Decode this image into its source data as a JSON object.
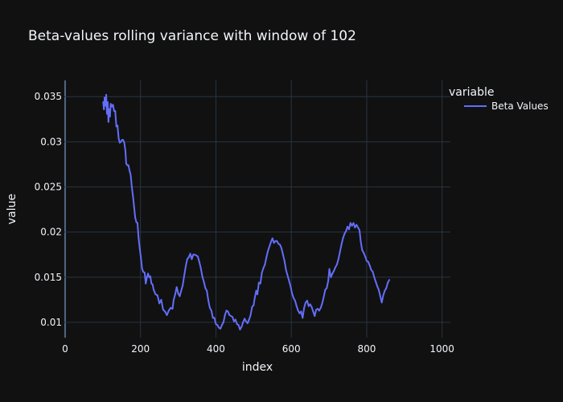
{
  "chart_data": {
    "type": "line",
    "title": "Beta-values rolling variance with window of 102",
    "xlabel": "index",
    "ylabel": "value",
    "xlim": [
      -2,
      1022
    ],
    "ylim": [
      0.0083,
      0.0368
    ],
    "x_ticks": [
      0,
      200,
      400,
      600,
      800,
      1000
    ],
    "x_tick_labels": [
      "0",
      "200",
      "400",
      "600",
      "800",
      "1000"
    ],
    "y_ticks": [
      0.01,
      0.015,
      0.02,
      0.025,
      0.03,
      0.035
    ],
    "y_tick_labels": [
      "0.01",
      "0.015",
      "0.02",
      "0.025",
      "0.03",
      "0.035"
    ],
    "grid": true,
    "legend_title": "variable",
    "legend_position": "top-right",
    "series": [
      {
        "name": "Beta Values",
        "color": "#636efa",
        "points": [
          [
            101,
            0.0344
          ],
          [
            103,
            0.0336
          ],
          [
            105,
            0.0349
          ],
          [
            107,
            0.034
          ],
          [
            109,
            0.0352
          ],
          [
            111,
            0.0331
          ],
          [
            113,
            0.0344
          ],
          [
            115,
            0.0322
          ],
          [
            117,
            0.0336
          ],
          [
            119,
            0.0328
          ],
          [
            121,
            0.0342
          ],
          [
            124,
            0.0339
          ],
          [
            127,
            0.0341
          ],
          [
            130,
            0.0334
          ],
          [
            133,
            0.0334
          ],
          [
            136,
            0.0317
          ],
          [
            139,
            0.0318
          ],
          [
            142,
            0.0304
          ],
          [
            145,
            0.0299
          ],
          [
            148,
            0.03
          ],
          [
            151,
            0.0302
          ],
          [
            154,
            0.0302
          ],
          [
            157,
            0.0299
          ],
          [
            160,
            0.029
          ],
          [
            162,
            0.0276
          ],
          [
            165,
            0.0274
          ],
          [
            168,
            0.0274
          ],
          [
            171,
            0.0268
          ],
          [
            174,
            0.0263
          ],
          [
            177,
            0.025
          ],
          [
            180,
            0.024
          ],
          [
            183,
            0.0228
          ],
          [
            186,
            0.0216
          ],
          [
            189,
            0.0211
          ],
          [
            192,
            0.021
          ],
          [
            195,
            0.0193
          ],
          [
            198,
            0.0182
          ],
          [
            201,
            0.0172
          ],
          [
            204,
            0.016
          ],
          [
            207,
            0.0156
          ],
          [
            211,
            0.0155
          ],
          [
            214,
            0.0143
          ],
          [
            217,
            0.015
          ],
          [
            220,
            0.0154
          ],
          [
            223,
            0.015
          ],
          [
            226,
            0.0151
          ],
          [
            229,
            0.0143
          ],
          [
            232,
            0.0142
          ],
          [
            235,
            0.0136
          ],
          [
            240,
            0.0131
          ],
          [
            245,
            0.013
          ],
          [
            250,
            0.0121
          ],
          [
            255,
            0.0125
          ],
          [
            260,
            0.0114
          ],
          [
            265,
            0.0112
          ],
          [
            270,
            0.0108
          ],
          [
            275,
            0.0113
          ],
          [
            280,
            0.0116
          ],
          [
            285,
            0.0115
          ],
          [
            288,
            0.0125
          ],
          [
            292,
            0.0131
          ],
          [
            296,
            0.0139
          ],
          [
            300,
            0.0132
          ],
          [
            304,
            0.0129
          ],
          [
            308,
            0.0135
          ],
          [
            312,
            0.0141
          ],
          [
            316,
            0.0152
          ],
          [
            320,
            0.0162
          ],
          [
            324,
            0.017
          ],
          [
            328,
            0.0172
          ],
          [
            332,
            0.0176
          ],
          [
            336,
            0.017
          ],
          [
            340,
            0.0175
          ],
          [
            344,
            0.0175
          ],
          [
            348,
            0.0174
          ],
          [
            352,
            0.0173
          ],
          [
            356,
            0.0167
          ],
          [
            360,
            0.016
          ],
          [
            364,
            0.0151
          ],
          [
            368,
            0.0145
          ],
          [
            372,
            0.0138
          ],
          [
            376,
            0.0135
          ],
          [
            380,
            0.0124
          ],
          [
            384,
            0.0116
          ],
          [
            388,
            0.0113
          ],
          [
            392,
            0.0105
          ],
          [
            396,
            0.0105
          ],
          [
            400,
            0.0098
          ],
          [
            404,
            0.0097
          ],
          [
            408,
            0.0094
          ],
          [
            412,
            0.0093
          ],
          [
            416,
            0.0097
          ],
          [
            420,
            0.01
          ],
          [
            424,
            0.0108
          ],
          [
            428,
            0.0113
          ],
          [
            432,
            0.0112
          ],
          [
            436,
            0.0108
          ],
          [
            440,
            0.0107
          ],
          [
            444,
            0.0106
          ],
          [
            448,
            0.0101
          ],
          [
            452,
            0.0103
          ],
          [
            456,
            0.0098
          ],
          [
            460,
            0.0097
          ],
          [
            464,
            0.0092
          ],
          [
            468,
            0.0095
          ],
          [
            472,
            0.01
          ],
          [
            476,
            0.0104
          ],
          [
            480,
            0.0101
          ],
          [
            484,
            0.0099
          ],
          [
            488,
            0.0103
          ],
          [
            492,
            0.0108
          ],
          [
            496,
            0.0117
          ],
          [
            500,
            0.0119
          ],
          [
            503,
            0.0127
          ],
          [
            507,
            0.0135
          ],
          [
            510,
            0.0131
          ],
          [
            514,
            0.0144
          ],
          [
            518,
            0.0143
          ],
          [
            522,
            0.0155
          ],
          [
            526,
            0.016
          ],
          [
            530,
            0.0164
          ],
          [
            534,
            0.0172
          ],
          [
            538,
            0.0179
          ],
          [
            542,
            0.0184
          ],
          [
            546,
            0.0189
          ],
          [
            550,
            0.0193
          ],
          [
            554,
            0.0188
          ],
          [
            558,
            0.019
          ],
          [
            562,
            0.019
          ],
          [
            566,
            0.0187
          ],
          [
            570,
            0.0186
          ],
          [
            574,
            0.0182
          ],
          [
            578,
            0.0175
          ],
          [
            582,
            0.0168
          ],
          [
            586,
            0.0158
          ],
          [
            590,
            0.0152
          ],
          [
            594,
            0.0146
          ],
          [
            598,
            0.014
          ],
          [
            602,
            0.0132
          ],
          [
            606,
            0.0127
          ],
          [
            610,
            0.0124
          ],
          [
            614,
            0.0118
          ],
          [
            618,
            0.0113
          ],
          [
            622,
            0.011
          ],
          [
            626,
            0.0112
          ],
          [
            630,
            0.0105
          ],
          [
            634,
            0.0116
          ],
          [
            638,
            0.0122
          ],
          [
            642,
            0.0124
          ],
          [
            646,
            0.0118
          ],
          [
            650,
            0.012
          ],
          [
            654,
            0.0117
          ],
          [
            658,
            0.0112
          ],
          [
            662,
            0.0107
          ],
          [
            666,
            0.0114
          ],
          [
            670,
            0.0115
          ],
          [
            674,
            0.0113
          ],
          [
            678,
            0.0116
          ],
          [
            682,
            0.0121
          ],
          [
            686,
            0.0128
          ],
          [
            690,
            0.0136
          ],
          [
            694,
            0.0138
          ],
          [
            698,
            0.0146
          ],
          [
            701,
            0.0159
          ],
          [
            705,
            0.015
          ],
          [
            709,
            0.0154
          ],
          [
            713,
            0.0157
          ],
          [
            717,
            0.0161
          ],
          [
            721,
            0.0164
          ],
          [
            725,
            0.017
          ],
          [
            729,
            0.0178
          ],
          [
            733,
            0.0186
          ],
          [
            737,
            0.0193
          ],
          [
            741,
            0.0198
          ],
          [
            745,
            0.0201
          ],
          [
            749,
            0.0206
          ],
          [
            753,
            0.0203
          ],
          [
            757,
            0.021
          ],
          [
            761,
            0.0207
          ],
          [
            765,
            0.021
          ],
          [
            769,
            0.0205
          ],
          [
            773,
            0.0208
          ],
          [
            777,
            0.0205
          ],
          [
            781,
            0.0202
          ],
          [
            784,
            0.019
          ],
          [
            788,
            0.018
          ],
          [
            792,
            0.0177
          ],
          [
            796,
            0.0173
          ],
          [
            800,
            0.0168
          ],
          [
            804,
            0.0167
          ],
          [
            808,
            0.0163
          ],
          [
            812,
            0.0158
          ],
          [
            816,
            0.0156
          ],
          [
            820,
            0.015
          ],
          [
            824,
            0.0145
          ],
          [
            828,
            0.014
          ],
          [
            832,
            0.0136
          ],
          [
            836,
            0.0129
          ],
          [
            840,
            0.0122
          ],
          [
            844,
            0.013
          ],
          [
            848,
            0.0135
          ],
          [
            852,
            0.0138
          ],
          [
            856,
            0.0144
          ],
          [
            860,
            0.0147
          ]
        ]
      }
    ]
  }
}
